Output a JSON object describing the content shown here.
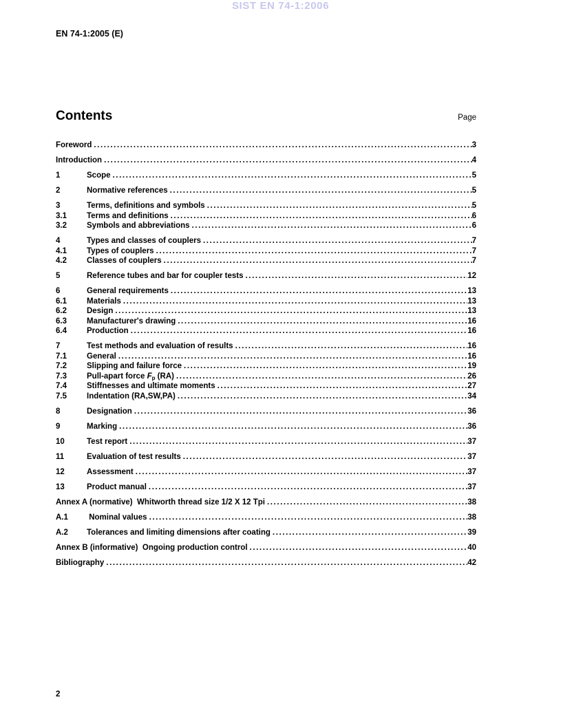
{
  "page": {
    "watermark": "SIST EN 74-1:2006",
    "doc_ref": "EN 74-1:2005 (E)",
    "contents_title": "Contents",
    "page_column_label": "Page",
    "footer_page_number": "2"
  },
  "colors": {
    "watermark": "#c7c7ee",
    "text": "#000000",
    "background": "#ffffff"
  },
  "toc": [
    {
      "num": "",
      "pre": "Foreword",
      "page": "3",
      "gap": false
    },
    {
      "num": "",
      "pre": "Introduction",
      "page": "4",
      "gap": true
    },
    {
      "num": "1",
      "pre": "Scope",
      "page": "5",
      "gap": true
    },
    {
      "num": "2",
      "pre": "Normative references",
      "page": "5",
      "gap": true
    },
    {
      "num": "3",
      "pre": "Terms, definitions and symbols",
      "page": "5",
      "gap": true
    },
    {
      "num": "3.1",
      "pre": "Terms and definitions",
      "page": "6",
      "gap": false
    },
    {
      "num": "3.2",
      "pre": "Symbols and abbreviations",
      "page": "6",
      "gap": false
    },
    {
      "num": "4",
      "pre": "Types and classes of couplers",
      "page": "7",
      "gap": true
    },
    {
      "num": "4.1",
      "pre": "Types of couplers",
      "page": "7",
      "gap": false
    },
    {
      "num": "4.2",
      "pre": "Classes of couplers",
      "page": "7",
      "gap": false
    },
    {
      "num": "5",
      "pre": "Reference tubes and bar for coupler tests",
      "page": "12",
      "gap": true
    },
    {
      "num": "6",
      "pre": "General requirements",
      "page": "13",
      "gap": true
    },
    {
      "num": "6.1",
      "pre": "Materials",
      "page": "13",
      "gap": false
    },
    {
      "num": "6.2",
      "pre": "Design",
      "page": "13",
      "gap": false
    },
    {
      "num": "6.3",
      "pre": "Manufacturer's drawing",
      "page": "16",
      "gap": false
    },
    {
      "num": "6.4",
      "pre": "Production",
      "page": "16",
      "gap": false
    },
    {
      "num": "7",
      "pre": "Test methods and evaluation of results",
      "page": "16",
      "gap": true
    },
    {
      "num": "7.1",
      "pre": "General",
      "page": "16",
      "gap": false
    },
    {
      "num": "7.2",
      "pre": "Slipping and failure force",
      "page": "19",
      "gap": false
    },
    {
      "num": "7.3",
      "pre": "Pull-apart force ",
      "it": "F",
      "sub": "p",
      "suf": " (RA)",
      "page": "26",
      "gap": false
    },
    {
      "num": "7.4",
      "pre": "Stiffnesses and ultimate moments",
      "page": "27",
      "gap": false
    },
    {
      "num": "7.5",
      "pre": "Indentation (RA,SW,PA)",
      "page": "34",
      "gap": false
    },
    {
      "num": "8",
      "pre": "Designation",
      "page": "36",
      "gap": true
    },
    {
      "num": "9",
      "pre": "Marking",
      "page": "36",
      "gap": true
    },
    {
      "num": "10",
      "pre": "Test report",
      "page": "37",
      "gap": true
    },
    {
      "num": "11",
      "pre": "Evaluation of test results",
      "page": "37",
      "gap": true
    },
    {
      "num": "12",
      "pre": "Assessment",
      "page": "37",
      "gap": true
    },
    {
      "num": "13",
      "pre": "Product manual",
      "page": "37",
      "gap": true
    },
    {
      "num": "",
      "pre": "Annex A (normative)  Whitworth thread size 1/2 X 12 Tpi",
      "page": "38",
      "gap": true
    },
    {
      "num": "A.1",
      "pre": " Nominal values",
      "page": "38",
      "gap": true
    },
    {
      "num": "A.2",
      "pre": "Tolerances and limiting dimensions after coating",
      "page": "39",
      "gap": true
    },
    {
      "num": "",
      "pre": "Annex B (informative)  Ongoing production control",
      "page": "40",
      "gap": true
    },
    {
      "num": "",
      "pre": "Bibliography",
      "page": "42",
      "gap": true
    }
  ]
}
